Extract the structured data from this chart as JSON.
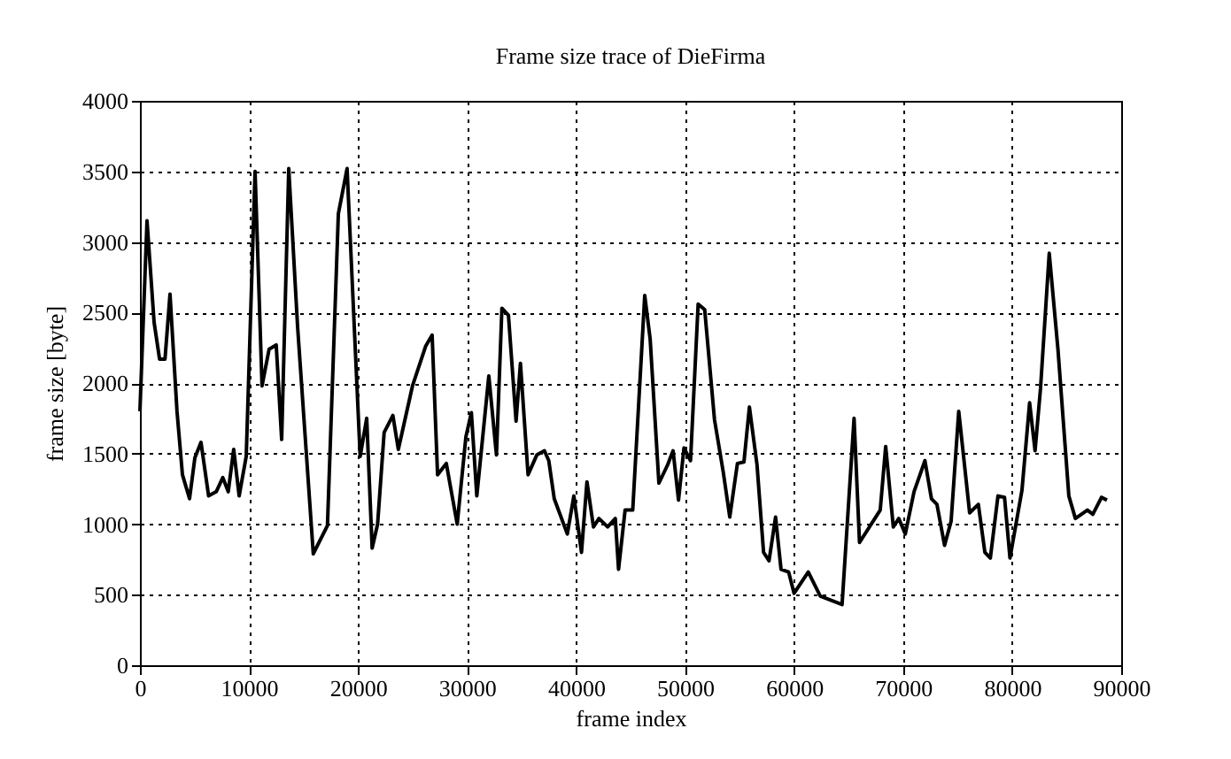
{
  "chart_data": {
    "type": "line",
    "title": "Frame size trace of DieFirma",
    "xlabel": "frame index",
    "ylabel": "frame size [byte]",
    "x": [
      0,
      650,
      1300,
      1800,
      2300,
      2760,
      3400,
      3900,
      4550,
      5040,
      5600,
      6300,
      7000,
      7600,
      8100,
      8600,
      9100,
      9750,
      10560,
      11200,
      11850,
      12500,
      13000,
      13650,
      14460,
      15900,
      17200,
      18200,
      19000,
      20200,
      20800,
      21300,
      21800,
      22400,
      23200,
      23700,
      25000,
      26200,
      26800,
      27300,
      28100,
      29100,
      29900,
      30400,
      30900,
      32000,
      32700,
      33200,
      33800,
      34500,
      34900,
      35600,
      36400,
      37100,
      37500,
      38000,
      39200,
      39800,
      40500,
      41000,
      41600,
      42100,
      42900,
      43600,
      43900,
      44500,
      45200,
      46300,
      46800,
      47600,
      48400,
      48900,
      49400,
      49900,
      50500,
      51200,
      51800,
      52700,
      53500,
      54100,
      54800,
      55400,
      55900,
      56600,
      57200,
      57700,
      58300,
      58800,
      59500,
      60000,
      61300,
      62400,
      64400,
      65500,
      66000,
      67900,
      68400,
      69100,
      69600,
      70200,
      71000,
      72000,
      72600,
      73100,
      73800,
      74400,
      75100,
      76100,
      76900,
      77500,
      78000,
      78700,
      79300,
      79800,
      80900,
      81600,
      82100,
      82600,
      83400,
      84200,
      85200,
      85800,
      86900,
      87400,
      88200,
      88700
    ],
    "series": [
      {
        "color": "#000000",
        "values": [
          1800,
          3150,
          2430,
          2170,
          2170,
          2630,
          1800,
          1350,
          1180,
          1470,
          1580,
          1200,
          1230,
          1330,
          1230,
          1530,
          1200,
          1480,
          3500,
          1980,
          2240,
          2270,
          1600,
          3520,
          2400,
          790,
          990,
          3200,
          3520,
          1480,
          1750,
          830,
          1000,
          1650,
          1770,
          1530,
          1980,
          2260,
          2340,
          1350,
          1430,
          1000,
          1620,
          1790,
          1200,
          2050,
          1490,
          2530,
          2480,
          1730,
          2140,
          1350,
          1490,
          1520,
          1450,
          1180,
          930,
          1200,
          800,
          1300,
          980,
          1040,
          980,
          1040,
          680,
          1100,
          1100,
          2620,
          2310,
          1290,
          1420,
          1520,
          1170,
          1540,
          1450,
          2560,
          2520,
          1740,
          1370,
          1050,
          1430,
          1440,
          1830,
          1420,
          800,
          740,
          1050,
          680,
          660,
          510,
          660,
          490,
          430,
          1750,
          870,
          1100,
          1550,
          980,
          1040,
          930,
          1230,
          1450,
          1180,
          1140,
          850,
          1020,
          1800,
          1080,
          1140,
          800,
          760,
          1200,
          1190,
          760,
          1240,
          1860,
          1520,
          1960,
          2920,
          2240,
          1200,
          1040,
          1100,
          1070,
          1190,
          1170
        ]
      }
    ],
    "xlim": [
      0,
      90000
    ],
    "xticks": [
      0,
      10000,
      20000,
      30000,
      40000,
      50000,
      60000,
      70000,
      80000,
      90000
    ],
    "ylim": [
      0,
      4000
    ],
    "yticks": [
      0,
      500,
      1000,
      1500,
      2000,
      2500,
      3000,
      3500,
      4000
    ],
    "grid": true,
    "line_style": "solid",
    "marker": "none"
  }
}
